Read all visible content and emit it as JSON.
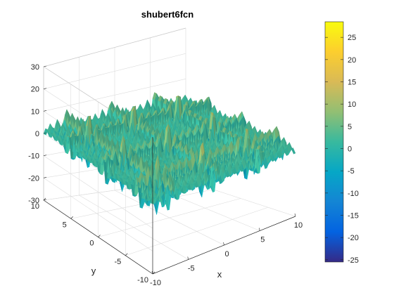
{
  "chart_data": {
    "type": "surface",
    "title": "shubert6fcn",
    "xlabel": "x",
    "ylabel": "y",
    "zlabel": "",
    "xlim": [
      -10,
      10
    ],
    "ylim": [
      -10,
      10
    ],
    "zlim": [
      -30,
      30
    ],
    "x_ticks": [
      -10,
      -5,
      0,
      5,
      10
    ],
    "y_ticks": [
      -10,
      -5,
      0,
      5,
      10
    ],
    "z_ticks": [
      -30,
      -20,
      -10,
      0,
      10,
      20,
      30
    ],
    "x_tick_labels": [
      "-10",
      "-5",
      "0",
      "5",
      "10"
    ],
    "y_tick_labels": [
      "-10",
      "-5",
      "0",
      "5",
      "10"
    ],
    "z_tick_labels": [
      "-30",
      "-20",
      "-10",
      "0",
      "10",
      "20",
      "30"
    ],
    "colorbar": {
      "range": [
        -25.5,
        28.5
      ],
      "ticks": [
        -25,
        -20,
        -15,
        -10,
        -5,
        0,
        5,
        10,
        15,
        20,
        25
      ],
      "tick_labels": [
        "-25",
        "-20",
        "-15",
        "-10",
        "-5",
        "0",
        "5",
        "10",
        "15",
        "20",
        "25"
      ],
      "colormap": "parula"
    },
    "grid": true,
    "view": "3d-perspective",
    "colormap_stops": [
      "#352a87",
      "#0363e1",
      "#1485d4",
      "#06a7c6",
      "#38b99e",
      "#92bf73",
      "#d9ba56",
      "#fcce2e",
      "#f9fb0e"
    ]
  }
}
